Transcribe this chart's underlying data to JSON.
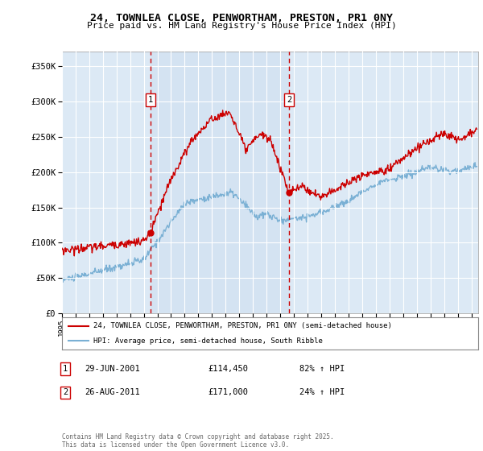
{
  "title": "24, TOWNLEA CLOSE, PENWORTHAM, PRESTON, PR1 0NY",
  "subtitle": "Price paid vs. HM Land Registry's House Price Index (HPI)",
  "legend_line1": "24, TOWNLEA CLOSE, PENWORTHAM, PRESTON, PR1 0NY (semi-detached house)",
  "legend_line2": "HPI: Average price, semi-detached house, South Ribble",
  "annotation1_label": "1",
  "annotation1_date": "29-JUN-2001",
  "annotation1_price": "£114,450",
  "annotation1_pct": "82% ↑ HPI",
  "annotation1_year": 2001.49,
  "annotation1_value": 114450,
  "annotation2_label": "2",
  "annotation2_date": "26-AUG-2011",
  "annotation2_price": "£171,000",
  "annotation2_pct": "24% ↑ HPI",
  "annotation2_year": 2011.65,
  "annotation2_value": 171000,
  "footer": "Contains HM Land Registry data © Crown copyright and database right 2025.\nThis data is licensed under the Open Government Licence v3.0.",
  "ylim": [
    0,
    370000
  ],
  "xlim_start": 1995.0,
  "xlim_end": 2025.5,
  "bg_color": "#dce9f5",
  "highlight_color": "#e8f0fa",
  "red_color": "#cc0000",
  "blue_color": "#7ab0d4",
  "marker_box_color": "#cc0000",
  "grid_color": "#ffffff",
  "spine_color": "#aaaaaa"
}
